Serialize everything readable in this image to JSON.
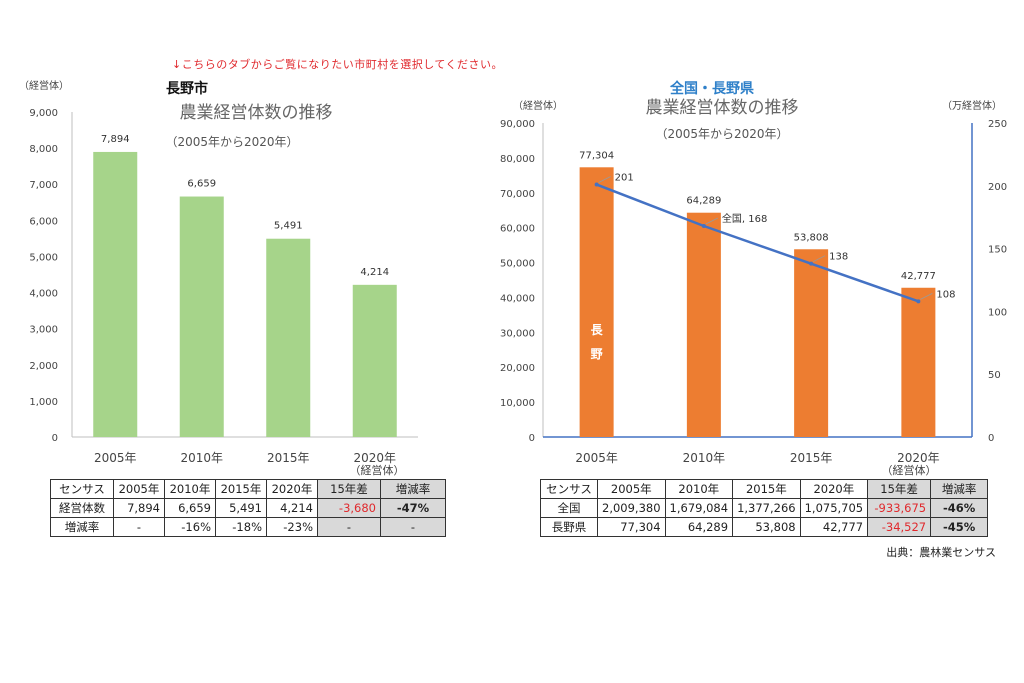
{
  "notice": "↓こちらのタブからご覧になりたい市町村を選択してください。",
  "left": {
    "heading": "長野市",
    "chart_title": "農業経営体数の推移",
    "chart_subtitle": "（2005年から2020年）",
    "y_unit": "（経営体）",
    "x_unit": "（経営体）",
    "yticks": [
      "9,000",
      "8,000",
      "7,000",
      "6,000",
      "5,000",
      "4,000",
      "3,000",
      "2,000",
      "1,000",
      "0"
    ],
    "categories": [
      "2005年",
      "2010年",
      "2015年",
      "2020年"
    ],
    "value_labels": [
      "7,894",
      "6,659",
      "5,491",
      "4,214"
    ],
    "bar_color": "#a6d48a",
    "table": {
      "headers": [
        "センサス",
        "2005年",
        "2010年",
        "2015年",
        "2020年",
        "15年差",
        "増減率"
      ],
      "rows": [
        [
          "経営体数",
          "7,894",
          "6,659",
          "5,491",
          "4,214",
          "-3,680",
          "-47%"
        ],
        [
          "増減率",
          "-",
          "-16%",
          "-18%",
          "-23%",
          "-",
          "-"
        ]
      ]
    }
  },
  "right": {
    "heading": "全国・長野県",
    "heading_color": "#2f80c9",
    "chart_title": "農業経営体数の推移",
    "chart_subtitle": "（2005年から2020年）",
    "y_unit": "（経営体）",
    "y2_unit": "（万経営体）",
    "x_unit": "（経営体）",
    "yticks": [
      "90,000",
      "80,000",
      "70,000",
      "60,000",
      "50,000",
      "40,000",
      "30,000",
      "20,000",
      "10,000",
      "0"
    ],
    "y2ticks": [
      "250",
      "200",
      "150",
      "100",
      "50",
      "0"
    ],
    "categories": [
      "2005年",
      "2010年",
      "2015年",
      "2020年"
    ],
    "bar_value_labels": [
      "77,304",
      "64,289",
      "53,808",
      "42,777"
    ],
    "line_value_labels": [
      "201",
      "全国, 168",
      "138",
      "108"
    ],
    "bar_inner_label": [
      "長",
      "野"
    ],
    "bar_color": "#ed7d31",
    "line_color": "#4472c4",
    "table": {
      "headers": [
        "センサス",
        "2005年",
        "2010年",
        "2015年",
        "2020年",
        "15年差",
        "増減率"
      ],
      "rows": [
        [
          "全国",
          "2,009,380",
          "1,679,084",
          "1,377,266",
          "1,075,705",
          "-933,675",
          "-46%"
        ],
        [
          "長野県",
          "77,304",
          "64,289",
          "53,808",
          "42,777",
          "-34,527",
          "-45%"
        ]
      ]
    },
    "source": "出典：農林業センサス"
  },
  "chart_data": [
    {
      "type": "bar",
      "title": "農業経営体数の推移",
      "subtitle": "（2005年から2020年）",
      "ylabel": "（経営体）",
      "categories": [
        "2005年",
        "2010年",
        "2015年",
        "2020年"
      ],
      "values": [
        7894,
        6659,
        5491,
        4214
      ],
      "ylim": [
        0,
        9000
      ],
      "ytick_step": 1000,
      "legend": "none",
      "grid": false
    },
    {
      "type": "bar",
      "title": "農業経営体数の推移",
      "subtitle": "（2005年から2020年）",
      "ylabel": "（経営体）",
      "y2label": "（万経営体）",
      "categories": [
        "2005年",
        "2010年",
        "2015年",
        "2020年"
      ],
      "series": [
        {
          "name": "長野",
          "type": "bar",
          "axis": "left",
          "values": [
            77304,
            64289,
            53808,
            42777
          ]
        },
        {
          "name": "全国",
          "type": "line",
          "axis": "right",
          "values": [
            201,
            168,
            138,
            108
          ]
        }
      ],
      "ylim": [
        0,
        90000
      ],
      "ytick_step": 10000,
      "y2lim": [
        0,
        250
      ],
      "y2tick_step": 50,
      "legend": "none",
      "grid": false
    }
  ]
}
